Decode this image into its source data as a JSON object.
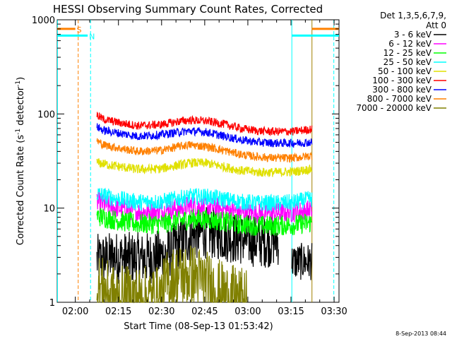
{
  "chart_data": {
    "type": "line",
    "title": "HESSI Observing Summary Count Rates, Corrected",
    "xlabel": "Start Time (08-Sep-13 01:53:42)",
    "ylabel_main": "Corrected Count Rate (s",
    "ylabel_sup1": "-1",
    "ylabel_mid": " detector",
    "ylabel_sup2": "-1",
    "ylabel_end": ")",
    "x_unit": "minutes since 01:53:42",
    "xlim": [
      0,
      98
    ],
    "ylim": [
      1,
      1000
    ],
    "yscale": "log",
    "x_ticks": [
      {
        "label": "02:00",
        "x": 6.3
      },
      {
        "label": "02:15",
        "x": 21.3
      },
      {
        "label": "02:30",
        "x": 36.3
      },
      {
        "label": "02:45",
        "x": 51.3
      },
      {
        "label": "03:00",
        "x": 66.3
      },
      {
        "label": "03:15",
        "x": 81.3
      },
      {
        "label": "03:30",
        "x": 96.3
      }
    ],
    "y_ticks": [
      {
        "label": "1",
        "y": 1
      },
      {
        "label": "10",
        "y": 10
      },
      {
        "label": "100",
        "y": 100
      },
      {
        "label": "1000",
        "y": 1000
      }
    ],
    "legend_header": [
      "Det 1,3,5,6,7,9,",
      "Att 0"
    ],
    "legend_position": "right",
    "data_start": 13.8,
    "data_end": 88.6,
    "series": [
      {
        "name": "3 - 6 keV",
        "color": "#000000",
        "points": [
          [
            13.8,
            2.8
          ],
          [
            20,
            3.0
          ],
          [
            30,
            2.9
          ],
          [
            38,
            3.2
          ],
          [
            44,
            4.6
          ],
          [
            50,
            5.6
          ],
          [
            56,
            5.3
          ],
          [
            62,
            4.8
          ],
          [
            68,
            4.5
          ],
          [
            73,
            4.4
          ],
          [
            76,
            4.6
          ],
          [
            77,
            4.6
          ]
        ],
        "tail": [
          [
            81.6,
            2.7
          ],
          [
            88.6,
            2.7
          ]
        ]
      },
      {
        "name": "6 - 12 keV",
        "color": "#ff00ff",
        "points": [
          [
            13.8,
            11.5
          ],
          [
            20,
            10.2
          ],
          [
            28,
            9.2
          ],
          [
            36,
            9.2
          ],
          [
            42,
            10.0
          ],
          [
            46,
            10.5
          ],
          [
            52,
            10.4
          ],
          [
            58,
            9.8
          ],
          [
            64,
            9.0
          ],
          [
            70,
            8.8
          ],
          [
            76,
            8.9
          ],
          [
            82,
            9.0
          ],
          [
            88.6,
            9.6
          ]
        ]
      },
      {
        "name": "12 - 25 keV",
        "color": "#00ff00",
        "points": [
          [
            13.8,
            8.3
          ],
          [
            20,
            7.5
          ],
          [
            28,
            6.8
          ],
          [
            36,
            6.8
          ],
          [
            42,
            7.3
          ],
          [
            47,
            7.7
          ],
          [
            52,
            7.6
          ],
          [
            58,
            7.2
          ],
          [
            64,
            6.7
          ],
          [
            70,
            6.5
          ],
          [
            76,
            6.5
          ],
          [
            82,
            6.6
          ],
          [
            88.6,
            7.0
          ]
        ]
      },
      {
        "name": "25 - 50 keV",
        "color": "#00ffff",
        "points": [
          [
            13.8,
            14.2
          ],
          [
            20,
            12.7
          ],
          [
            28,
            11.6
          ],
          [
            36,
            11.7
          ],
          [
            42,
            12.6
          ],
          [
            47,
            13.3
          ],
          [
            52,
            13.2
          ],
          [
            58,
            12.4
          ],
          [
            64,
            11.6
          ],
          [
            70,
            11.3
          ],
          [
            76,
            11.3
          ],
          [
            82,
            11.5
          ],
          [
            88.6,
            12.6
          ]
        ]
      },
      {
        "name": "50 - 100 keV",
        "color": "#e0e000",
        "points": [
          [
            13.8,
            30.5
          ],
          [
            20,
            28.0
          ],
          [
            28,
            25.8
          ],
          [
            36,
            26.2
          ],
          [
            42,
            28.5
          ],
          [
            47,
            30.3
          ],
          [
            52,
            30.0
          ],
          [
            58,
            27.5
          ],
          [
            64,
            25.0
          ],
          [
            70,
            24.0
          ],
          [
            76,
            24.0
          ],
          [
            82,
            24.3
          ],
          [
            88.6,
            26.0
          ]
        ]
      },
      {
        "name": "100 - 300 keV",
        "color": "#ff0000",
        "points": [
          [
            13.8,
            97
          ],
          [
            16,
            88
          ],
          [
            22,
            80
          ],
          [
            28,
            75
          ],
          [
            36,
            77
          ],
          [
            42,
            83
          ],
          [
            46,
            86
          ],
          [
            52,
            84
          ],
          [
            58,
            78
          ],
          [
            64,
            70
          ],
          [
            70,
            66
          ],
          [
            76,
            65
          ],
          [
            82,
            65
          ],
          [
            88.6,
            69
          ]
        ]
      },
      {
        "name": "300 - 800 keV",
        "color": "#0000ff",
        "points": [
          [
            13.8,
            73
          ],
          [
            16,
            67
          ],
          [
            22,
            62
          ],
          [
            28,
            58
          ],
          [
            36,
            60
          ],
          [
            42,
            64
          ],
          [
            46,
            66
          ],
          [
            52,
            64
          ],
          [
            58,
            58
          ],
          [
            64,
            53
          ],
          [
            70,
            50
          ],
          [
            76,
            49
          ],
          [
            82,
            49
          ],
          [
            88.6,
            50
          ]
        ]
      },
      {
        "name": "800 - 7000 keV",
        "color": "#ff8000",
        "points": [
          [
            13.8,
            52
          ],
          [
            16,
            47
          ],
          [
            22,
            43
          ],
          [
            28,
            40
          ],
          [
            36,
            41
          ],
          [
            42,
            45
          ],
          [
            46,
            47
          ],
          [
            52,
            45
          ],
          [
            58,
            41
          ],
          [
            64,
            37
          ],
          [
            70,
            35
          ],
          [
            76,
            34
          ],
          [
            82,
            34
          ],
          [
            88.6,
            36
          ]
        ]
      },
      {
        "name": "7000 - 20000 keV",
        "color": "#808000",
        "points": [
          [
            13.8,
            1.5
          ],
          [
            20,
            1.1
          ],
          [
            36,
            1.1
          ],
          [
            38,
            1.6
          ],
          [
            42,
            1.9
          ],
          [
            48,
            1.9
          ],
          [
            52,
            1.6
          ],
          [
            58,
            1.2
          ],
          [
            66,
            1.0
          ]
        ]
      }
    ],
    "annotations": [
      {
        "text": "S",
        "color": "#ff8000",
        "y": 800,
        "x1": 0,
        "x2": 6.3,
        "x_line": 7.3,
        "solid": false,
        "bar2": [
          88.6,
          98
        ]
      },
      {
        "text": "N",
        "color": "#00ffff",
        "y": 680,
        "x1": 0,
        "x2": 10.6,
        "x_line": 11.6,
        "solid": false,
        "bar2": [
          81.6,
          98
        ]
      }
    ],
    "vertical_lines": [
      {
        "x": 0.1,
        "color": "#00ffff",
        "solid": true
      },
      {
        "x": 81.6,
        "color": "#00ffff",
        "solid": true
      },
      {
        "x": 88.6,
        "color": "#a08000",
        "solid": true
      },
      {
        "x": 96.2,
        "color": "#00ffff",
        "solid": false
      }
    ],
    "grid": false
  },
  "footer": {
    "timestamp": "8-Sep-2013 08:44"
  }
}
